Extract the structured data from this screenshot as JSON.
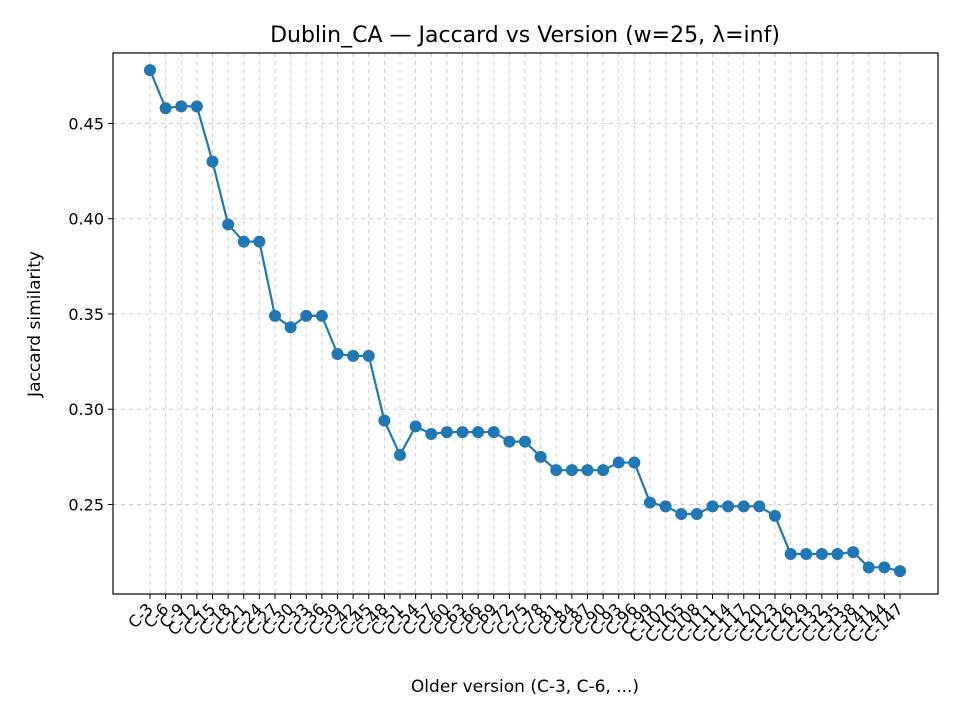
{
  "chart_data": {
    "type": "line",
    "title": "Dublin_CA — Jaccard vs Version (w=25, λ=inf)",
    "xlabel": "Older version (C-3, C-6, ...)",
    "ylabel": "Jaccard similarity",
    "ylim": [
      0.203,
      0.487
    ],
    "yticks": [
      0.25,
      0.3,
      0.35,
      0.4,
      0.45
    ],
    "ytick_labels": [
      "0.25",
      "0.30",
      "0.35",
      "0.40",
      "0.45"
    ],
    "grid": true,
    "color": "#1f77b4",
    "categories": [
      "C-3",
      "C-6",
      "C-9",
      "C-12",
      "C-15",
      "C-18",
      "C-21",
      "C-24",
      "C-27",
      "C-30",
      "C-33",
      "C-36",
      "C-39",
      "C-42",
      "C-45",
      "C-48",
      "C-51",
      "C-54",
      "C-57",
      "C-60",
      "C-63",
      "C-66",
      "C-69",
      "C-72",
      "C-75",
      "C-78",
      "C-81",
      "C-84",
      "C-87",
      "C-90",
      "C-93",
      "C-96",
      "C-99",
      "C-102",
      "C-105",
      "C-108",
      "C-111",
      "C-114",
      "C-117",
      "C-120",
      "C-123",
      "C-126",
      "C-129",
      "C-132",
      "C-135",
      "C-138",
      "C-141",
      "C-144",
      "C-147"
    ],
    "series": [
      {
        "values": [
          0.478,
          0.458,
          0.459,
          0.459,
          0.43,
          0.397,
          0.388,
          0.388,
          0.349,
          0.343,
          0.349,
          0.349,
          0.329,
          0.328,
          0.328,
          0.294,
          0.276,
          0.291,
          0.287,
          0.288,
          0.288,
          0.288,
          0.288,
          0.283,
          0.283,
          0.275,
          0.268,
          0.268,
          0.268,
          0.268,
          0.272,
          0.272,
          0.251,
          0.249,
          0.245,
          0.245,
          0.249,
          0.249,
          0.249,
          0.249,
          0.244,
          0.224,
          0.224,
          0.224,
          0.224,
          0.225,
          0.217,
          0.217,
          0.215
        ]
      }
    ]
  }
}
